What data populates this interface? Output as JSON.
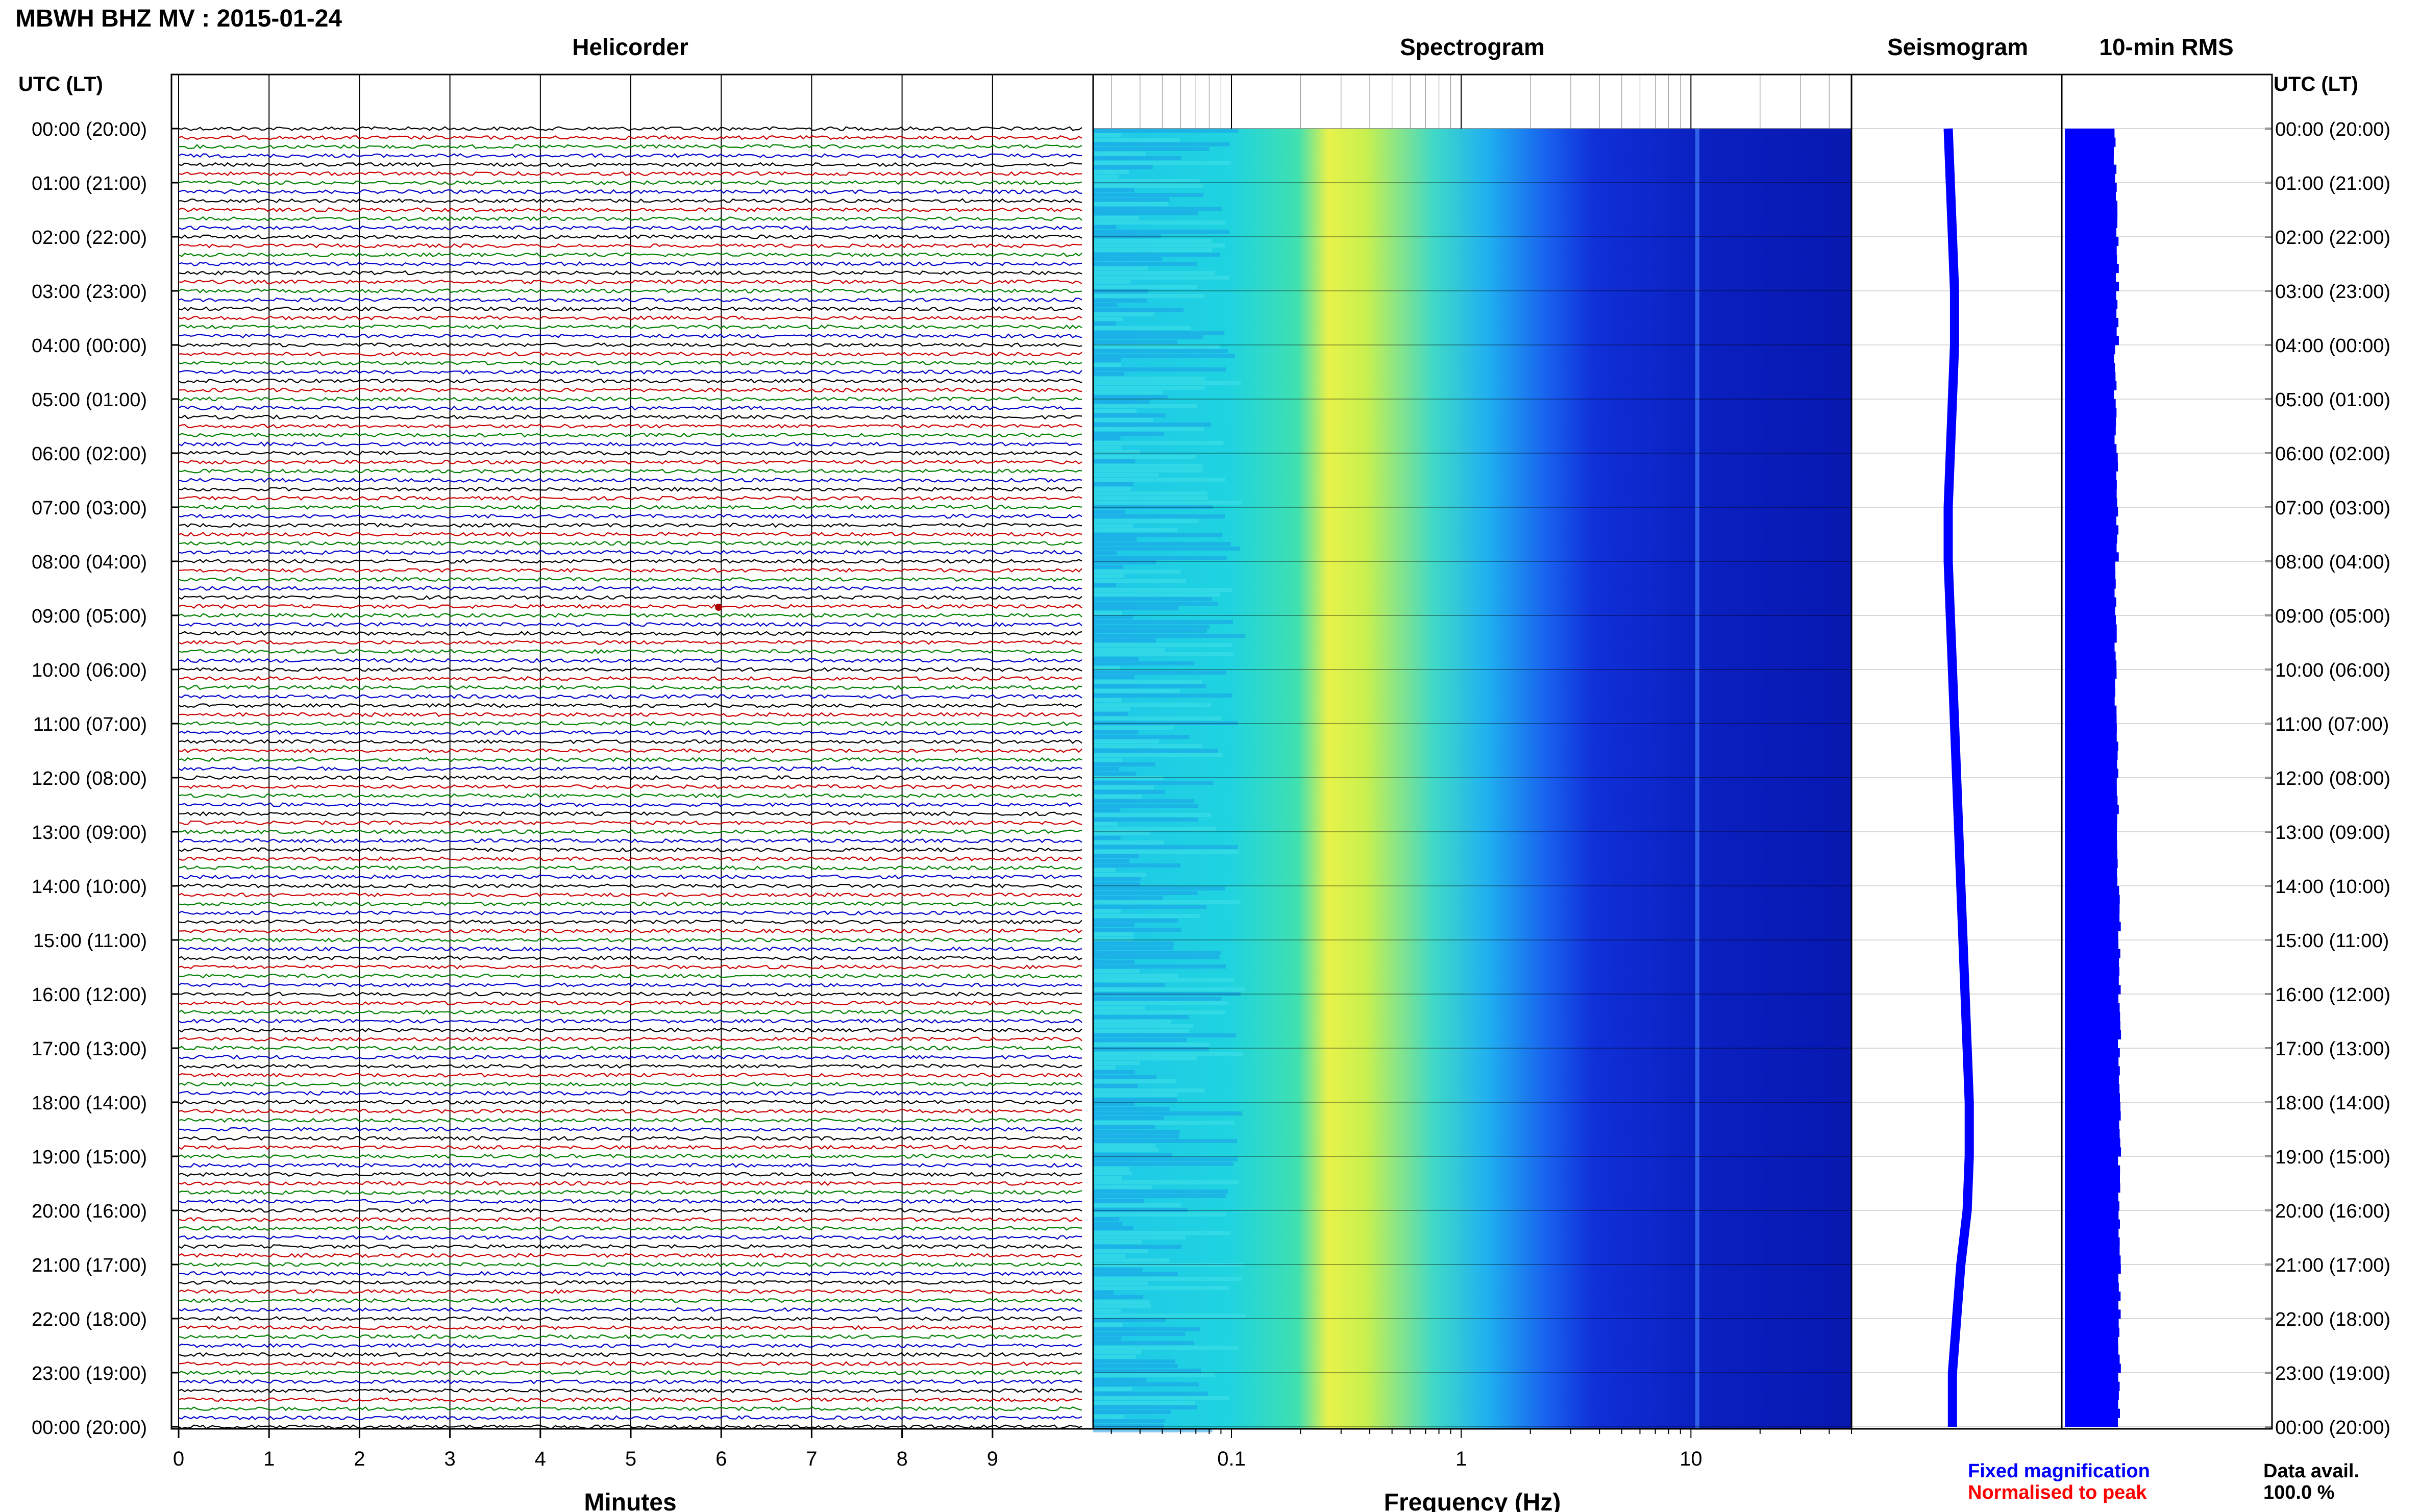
{
  "page": {
    "title": "MBWH BHZ MV : 2015-01-24",
    "panel_titles": {
      "helicorder": "Helicorder",
      "spectrogram": "Spectrogram",
      "seismogram": "Seismogram",
      "rms": "10-min RMS"
    },
    "axis_header_left": "UTC (LT)",
    "axis_header_right": "UTC (LT)",
    "legend": {
      "fixed": "Fixed magnification",
      "normalised": "Normalised to peak",
      "fixed_color": "#0000ff",
      "normalised_color": "#ff0000"
    },
    "data_avail_label": "Data avail.",
    "data_avail_value": "100.0 %"
  },
  "chart_data": [
    {
      "type": "line",
      "panel": "helicorder",
      "xlabel": "Minutes",
      "xlim": [
        0,
        10
      ],
      "x_ticks": [
        0,
        1,
        2,
        3,
        4,
        5,
        6,
        7,
        8,
        9
      ],
      "y_tick_labels": [
        "00:00 (20:00)",
        "01:00 (21:00)",
        "02:00 (22:00)",
        "03:00 (23:00)",
        "04:00 (00:00)",
        "05:00 (01:00)",
        "06:00 (02:00)",
        "07:00 (03:00)",
        "08:00 (04:00)",
        "09:00 (05:00)",
        "10:00 (06:00)",
        "11:00 (07:00)",
        "12:00 (08:00)",
        "13:00 (09:00)",
        "14:00 (10:00)",
        "15:00 (11:00)",
        "16:00 (12:00)",
        "17:00 (13:00)",
        "18:00 (14:00)",
        "19:00 (15:00)",
        "20:00 (16:00)",
        "21:00 (17:00)",
        "22:00 (18:00)",
        "23:00 (19:00)",
        "00:00 (20:00)"
      ],
      "traces_per_hour": 6,
      "trace_colors": [
        "#000000",
        "#cc0000",
        "#008000",
        "#0000cc"
      ],
      "grid": true
    },
    {
      "type": "heatmap",
      "panel": "spectrogram",
      "xlabel": "Frequency (Hz)",
      "xscale": "log",
      "xlim": [
        0.025,
        50
      ],
      "x_tick_labels": [
        "0.1",
        "1",
        "10"
      ],
      "x_tick_values": [
        0.1,
        1,
        10
      ],
      "colormap": [
        "#00ffff",
        "#40e0d0",
        "#ffff40",
        "#1e90ff",
        "#0000cd",
        "#00008b"
      ],
      "notes": [
        "yellow band near 0.2-0.3 Hz",
        "thin line near 10 Hz"
      ]
    },
    {
      "type": "line",
      "panel": "seismogram",
      "color": "#0000ff",
      "relative_position": [
        0.46,
        0.47,
        0.48,
        0.49,
        0.49,
        0.48,
        0.47,
        0.46,
        0.46,
        0.47,
        0.48,
        0.49,
        0.5,
        0.51,
        0.52,
        0.53,
        0.54,
        0.55,
        0.56,
        0.56,
        0.55,
        0.52,
        0.5,
        0.48,
        0.48
      ]
    },
    {
      "type": "bar",
      "panel": "rms",
      "color": "#0000ff",
      "relative_values": [
        0.24,
        0.25,
        0.25,
        0.25,
        0.24,
        0.24,
        0.25,
        0.25,
        0.24,
        0.24,
        0.24,
        0.25,
        0.25,
        0.25,
        0.26,
        0.26,
        0.26,
        0.26,
        0.26,
        0.26,
        0.26,
        0.26,
        0.26,
        0.26
      ]
    }
  ]
}
